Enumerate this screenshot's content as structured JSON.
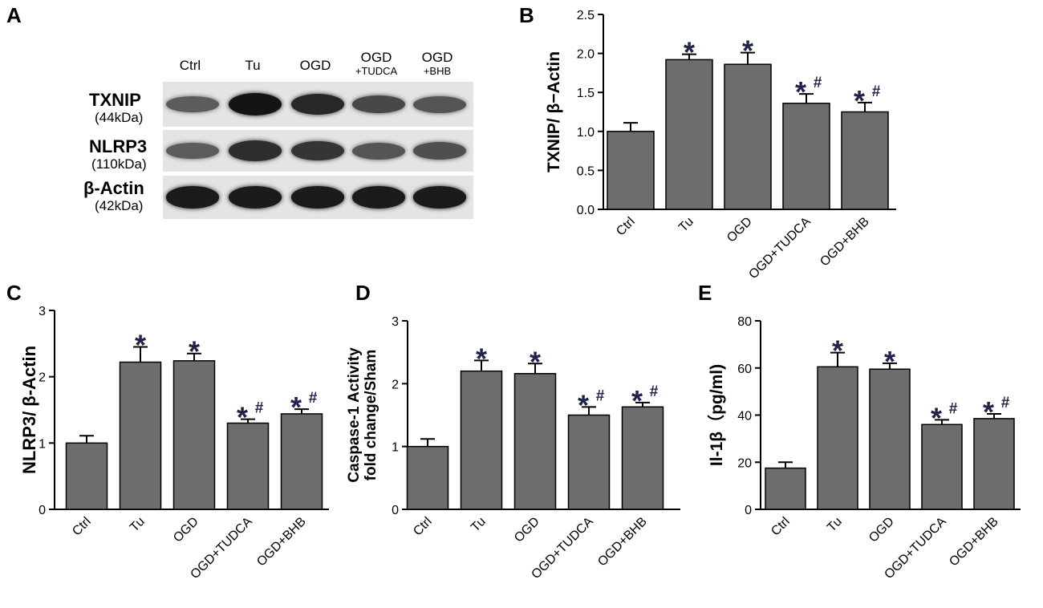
{
  "panel_letters": [
    "A",
    "B",
    "C",
    "D",
    "E"
  ],
  "blot": {
    "lanes": [
      {
        "label": "Ctrl",
        "sub": ""
      },
      {
        "label": "Tu",
        "sub": ""
      },
      {
        "label": "OGD",
        "sub": ""
      },
      {
        "label": "OGD",
        "sub": "+TUDCA"
      },
      {
        "label": "OGD",
        "sub": "+BHB"
      }
    ],
    "rows": [
      {
        "name": "TXNIP",
        "kda": "(44kDa)",
        "intensity": [
          0.45,
          1.0,
          0.85,
          0.6,
          0.5
        ]
      },
      {
        "name": "NLRP3",
        "kda": "(110kDa)",
        "intensity": [
          0.45,
          0.8,
          0.75,
          0.5,
          0.55
        ]
      },
      {
        "name": "β-Actin",
        "kda": "(42kDa)",
        "intensity": [
          0.95,
          0.95,
          0.95,
          0.95,
          0.95
        ]
      }
    ]
  },
  "chart_data": [
    {
      "panel": "B",
      "type": "bar",
      "categories": [
        "Ctrl",
        "Tu",
        "OGD",
        "OGD+TUDCA",
        "OGD+BHB"
      ],
      "values": [
        1.0,
        1.92,
        1.86,
        1.36,
        1.25
      ],
      "errors": [
        0.11,
        0.07,
        0.15,
        0.12,
        0.12
      ],
      "annotations": [
        "",
        "*",
        "*",
        "*#",
        "*#"
      ],
      "ylabel": "TXNIP/ β−Actin",
      "ylim": [
        0,
        2.5
      ],
      "yticks": [
        "0.0",
        "0.5",
        "1.0",
        "1.5",
        "2.0",
        "2.5"
      ],
      "color": "#6d6d6d"
    },
    {
      "panel": "C",
      "type": "bar",
      "categories": [
        "Ctrl",
        "Tu",
        "OGD",
        "OGD+TUDCA",
        "OGD+BHB"
      ],
      "values": [
        1.0,
        2.22,
        2.24,
        1.3,
        1.44
      ],
      "errors": [
        0.11,
        0.23,
        0.11,
        0.06,
        0.07
      ],
      "annotations": [
        "",
        "*",
        "*",
        "*#",
        "*#"
      ],
      "ylabel": "NLRP3/ β-Actin",
      "ylim": [
        0,
        3
      ],
      "yticks": [
        "0",
        "1",
        "2",
        "3"
      ],
      "color": "#6d6d6d"
    },
    {
      "panel": "D",
      "type": "bar",
      "categories": [
        "Ctrl",
        "Tu",
        "OGD",
        "OGD+TUDCA",
        "OGD+BHB"
      ],
      "values": [
        1.0,
        2.2,
        2.16,
        1.5,
        1.63
      ],
      "errors": [
        0.12,
        0.17,
        0.16,
        0.13,
        0.07
      ],
      "annotations": [
        "",
        "*",
        "*",
        "*#",
        "*#"
      ],
      "ylabel": "Caspase-1 Activity",
      "ylabel2": "fold change/Sham",
      "ylim": [
        0,
        3
      ],
      "yticks": [
        "0",
        "1",
        "2",
        "3"
      ],
      "color": "#6d6d6d"
    },
    {
      "panel": "E",
      "type": "bar",
      "categories": [
        "Ctrl",
        "Tu",
        "OGD",
        "OGD+TUDCA",
        "OGD+BHB"
      ],
      "values": [
        17.5,
        60.5,
        59.5,
        36,
        38.5
      ],
      "errors": [
        2.5,
        6,
        2.5,
        2,
        2
      ],
      "annotations": [
        "",
        "*",
        "*",
        "*#",
        "*#"
      ],
      "ylabel": "Il-1β（pg/ml)",
      "ylim": [
        0,
        80
      ],
      "yticks": [
        "0",
        "20",
        "40",
        "60",
        "80"
      ],
      "color": "#6d6d6d"
    }
  ]
}
